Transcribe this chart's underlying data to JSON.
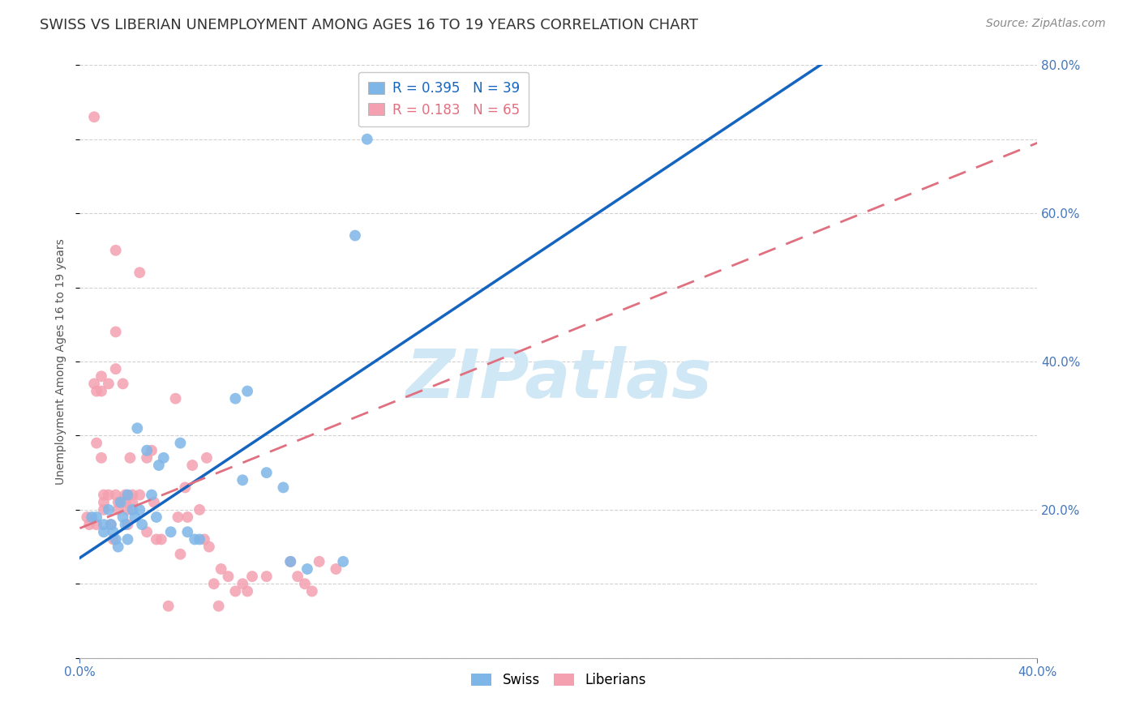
{
  "title": "SWISS VS LIBERIAN UNEMPLOYMENT AMONG AGES 16 TO 19 YEARS CORRELATION CHART",
  "source": "Source: ZipAtlas.com",
  "ylabel": "Unemployment Among Ages 16 to 19 years",
  "swiss_R": 0.395,
  "swiss_N": 39,
  "liberian_R": 0.183,
  "liberian_N": 65,
  "xlim": [
    0.0,
    0.4
  ],
  "ylim": [
    0.0,
    0.8
  ],
  "swiss_color": "#7EB6E8",
  "liberian_color": "#F4A0B0",
  "swiss_line_color": "#1565C0",
  "liberian_line_color": "#E07080",
  "background_color": "#FFFFFF",
  "grid_color": "#CCCCCC",
  "watermark_text": "ZIPatlas",
  "watermark_color": "#D0E8F5",
  "swiss_scatter_x": [
    0.005,
    0.007,
    0.01,
    0.01,
    0.012,
    0.013,
    0.014,
    0.015,
    0.016,
    0.017,
    0.018,
    0.019,
    0.02,
    0.02,
    0.022,
    0.023,
    0.024,
    0.025,
    0.026,
    0.028,
    0.03,
    0.032,
    0.033,
    0.035,
    0.038,
    0.042,
    0.045,
    0.048,
    0.05,
    0.065,
    0.068,
    0.07,
    0.078,
    0.085,
    0.088,
    0.095,
    0.11,
    0.115,
    0.12
  ],
  "swiss_scatter_y": [
    0.19,
    0.19,
    0.18,
    0.17,
    0.2,
    0.18,
    0.17,
    0.16,
    0.15,
    0.21,
    0.19,
    0.18,
    0.16,
    0.22,
    0.2,
    0.19,
    0.31,
    0.2,
    0.18,
    0.28,
    0.22,
    0.19,
    0.26,
    0.27,
    0.17,
    0.29,
    0.17,
    0.16,
    0.16,
    0.35,
    0.24,
    0.36,
    0.25,
    0.23,
    0.13,
    0.12,
    0.13,
    0.57,
    0.7
  ],
  "liberian_scatter_x": [
    0.003,
    0.004,
    0.006,
    0.006,
    0.007,
    0.007,
    0.007,
    0.009,
    0.009,
    0.009,
    0.01,
    0.01,
    0.01,
    0.012,
    0.012,
    0.013,
    0.014,
    0.015,
    0.015,
    0.015,
    0.015,
    0.016,
    0.016,
    0.018,
    0.019,
    0.019,
    0.02,
    0.02,
    0.021,
    0.022,
    0.022,
    0.025,
    0.025,
    0.028,
    0.028,
    0.03,
    0.031,
    0.032,
    0.034,
    0.037,
    0.04,
    0.041,
    0.042,
    0.044,
    0.045,
    0.047,
    0.05,
    0.052,
    0.053,
    0.054,
    0.056,
    0.058,
    0.059,
    0.062,
    0.065,
    0.068,
    0.07,
    0.072,
    0.078,
    0.088,
    0.091,
    0.094,
    0.097,
    0.1,
    0.107
  ],
  "liberian_scatter_y": [
    0.19,
    0.18,
    0.73,
    0.37,
    0.36,
    0.29,
    0.18,
    0.38,
    0.36,
    0.27,
    0.22,
    0.21,
    0.2,
    0.37,
    0.22,
    0.18,
    0.16,
    0.55,
    0.44,
    0.39,
    0.22,
    0.21,
    0.2,
    0.37,
    0.22,
    0.21,
    0.2,
    0.18,
    0.27,
    0.22,
    0.21,
    0.52,
    0.22,
    0.27,
    0.17,
    0.28,
    0.21,
    0.16,
    0.16,
    0.07,
    0.35,
    0.19,
    0.14,
    0.23,
    0.19,
    0.26,
    0.2,
    0.16,
    0.27,
    0.15,
    0.1,
    0.07,
    0.12,
    0.11,
    0.09,
    0.1,
    0.09,
    0.11,
    0.11,
    0.13,
    0.11,
    0.1,
    0.09,
    0.13,
    0.12
  ],
  "title_fontsize": 13,
  "label_fontsize": 10,
  "tick_fontsize": 11,
  "legend_fontsize": 12,
  "marker_size": 100,
  "watermark_fontsize": 60,
  "source_fontsize": 10,
  "swiss_line_intercept": 0.135,
  "swiss_line_slope": 2.15,
  "liberian_line_intercept": 0.175,
  "liberian_line_slope": 1.3
}
